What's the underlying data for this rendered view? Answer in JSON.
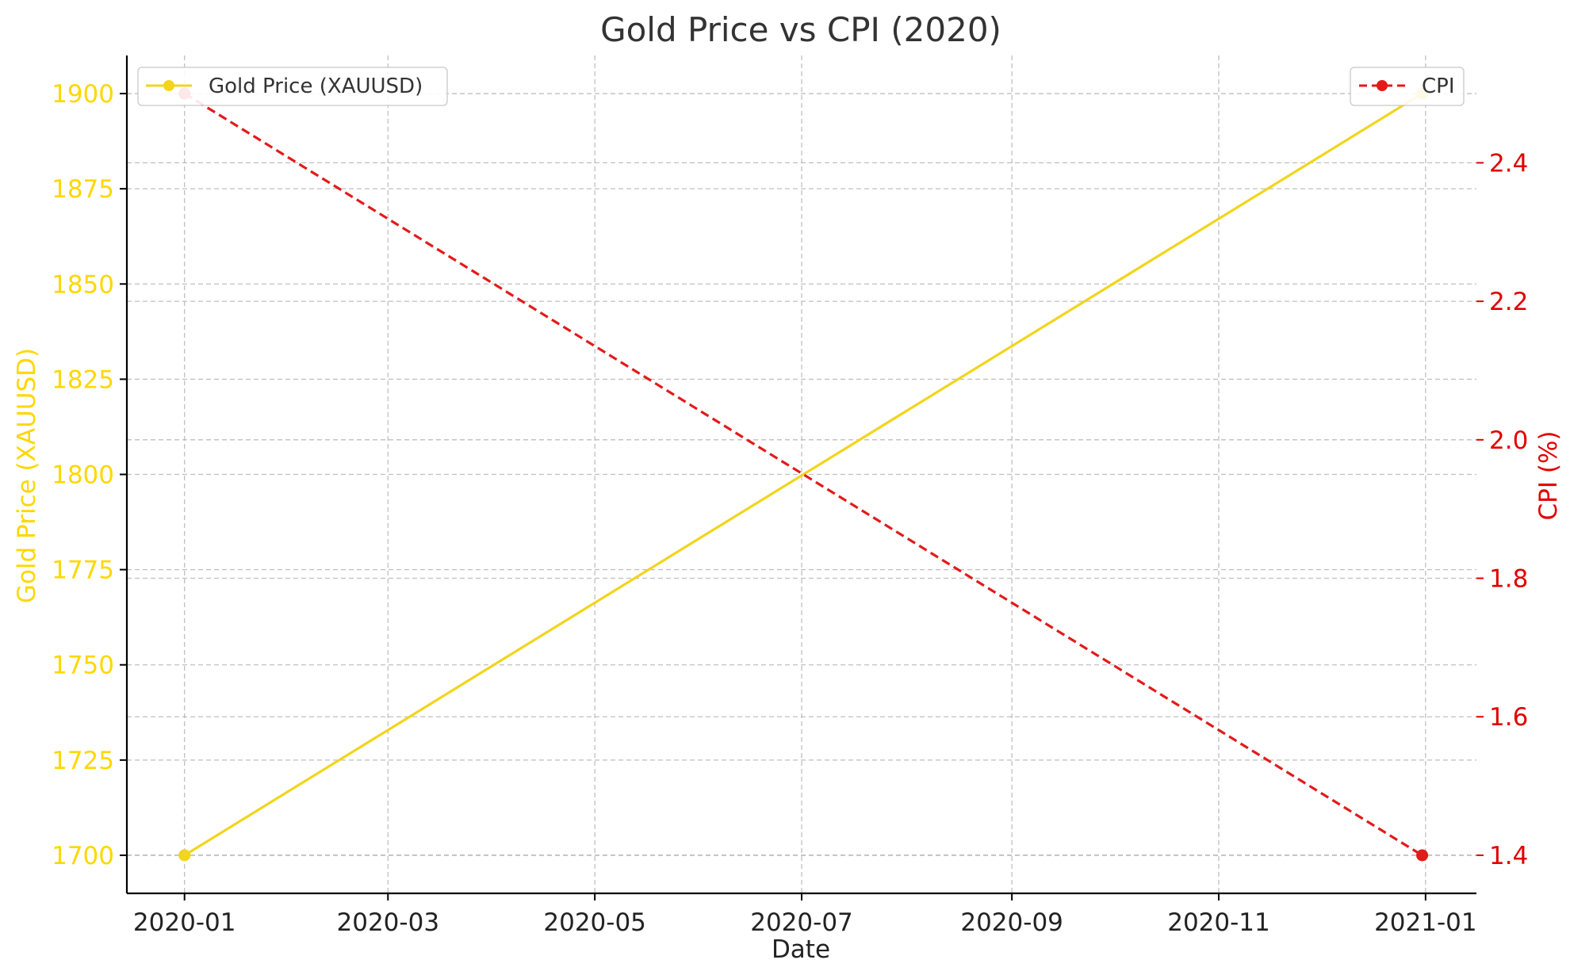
{
  "chart_data": {
    "type": "line",
    "title": "Gold Price vs CPI (2020)",
    "xlabel": "Date",
    "x": [
      "2020-01-01",
      "2020-12-31"
    ],
    "x_range": [
      "2019-12-15",
      "2021-01-16"
    ],
    "x_ticks": [
      "2020-01",
      "2020-03",
      "2020-05",
      "2020-07",
      "2020-09",
      "2020-11",
      "2021-01"
    ],
    "y_left": {
      "label": "Gold Price (XAUUSD)",
      "range": [
        1690,
        1910
      ],
      "ticks": [
        "1700",
        "1725",
        "1750",
        "1775",
        "1800",
        "1825",
        "1850",
        "1875",
        "1900"
      ],
      "color": "#FFD700"
    },
    "y_right": {
      "label": "CPI (%)",
      "range": [
        1.345,
        2.555
      ],
      "ticks": [
        "1.4",
        "1.6",
        "1.8",
        "2.0",
        "2.2",
        "2.4"
      ],
      "color": "#E00000"
    },
    "series": [
      {
        "name": "Gold Price (XAUUSD)",
        "axis": "left",
        "values": [
          1700,
          1900
        ],
        "color": "#F2D51C",
        "dash": "solid"
      },
      {
        "name": "CPI",
        "axis": "right",
        "values": [
          2.5,
          1.4
        ],
        "color": "#E31A1A",
        "dash": "dashed"
      }
    ],
    "grid": true,
    "legends": {
      "left": "top-left",
      "right": "top-right"
    }
  }
}
